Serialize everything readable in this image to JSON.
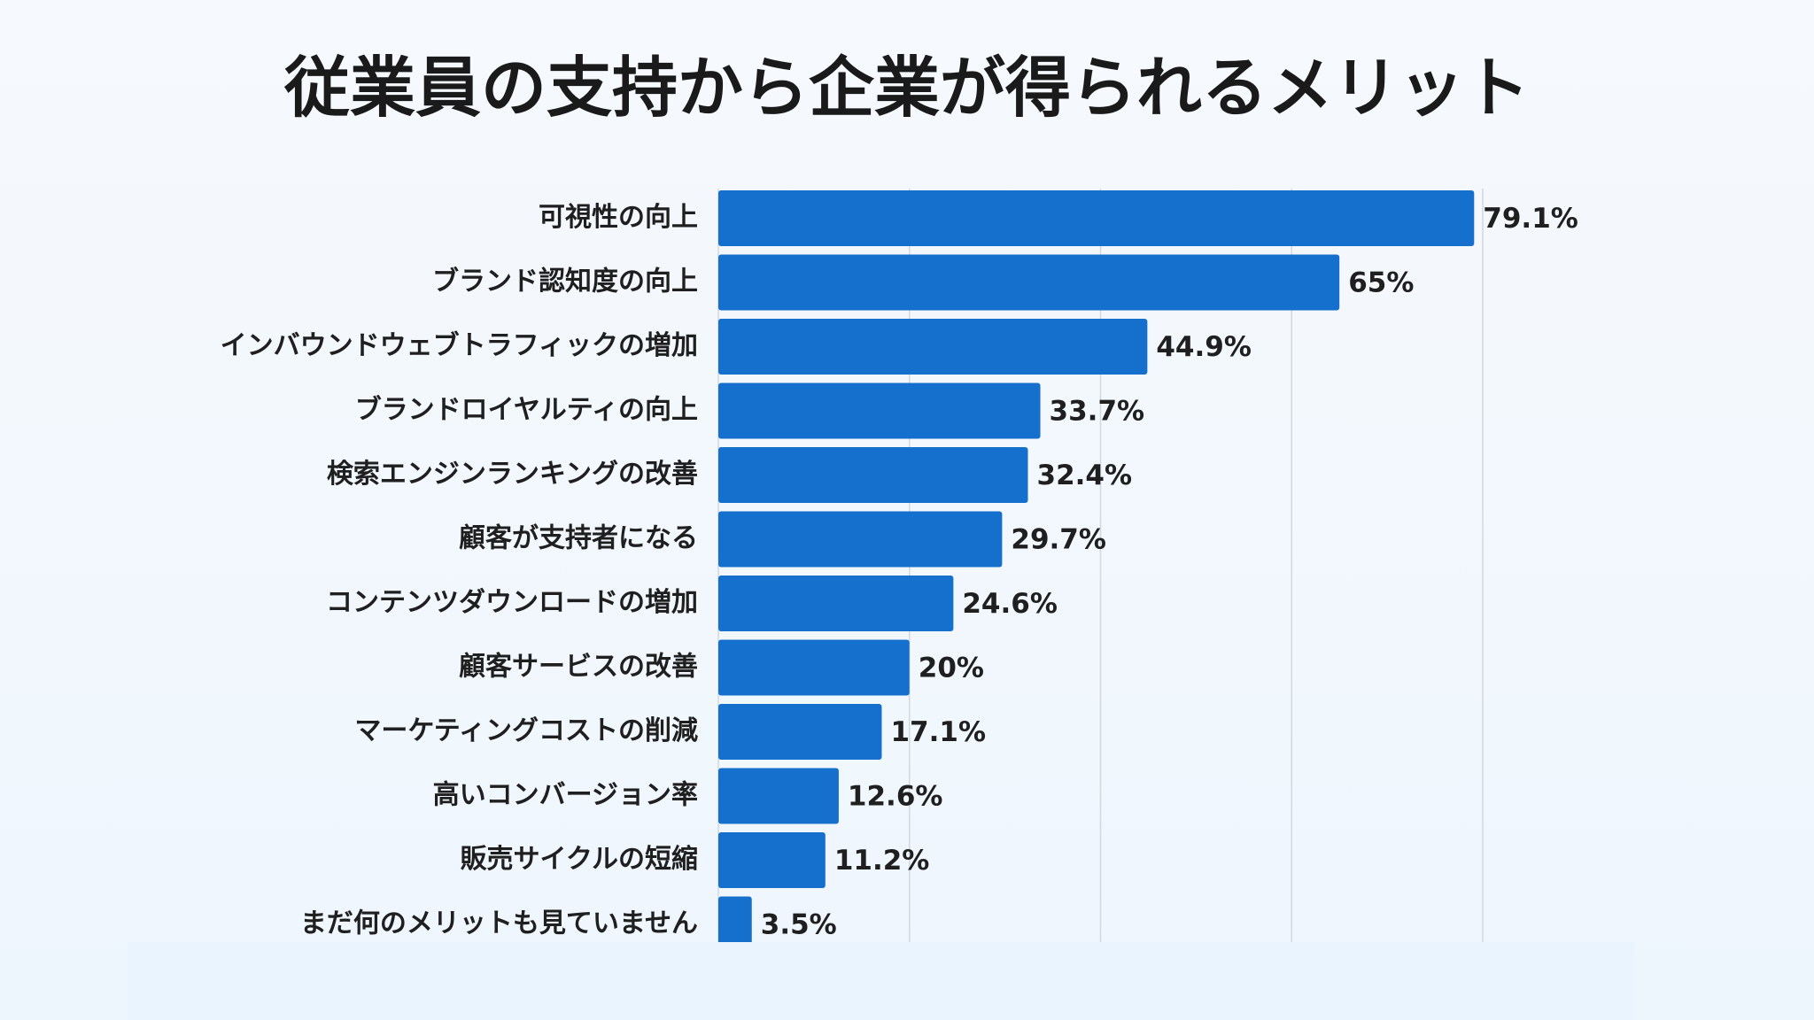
{
  "chart_data": {
    "type": "bar",
    "orientation": "horizontal",
    "title": "従業員の支持から企業が得られるメリット",
    "categories": [
      "可視性の向上",
      "ブランド認知度の向上",
      "インバウンドウェブトラフィックの増加",
      "ブランドロイヤルティの向上",
      "検索エンジンランキングの改善",
      "顧客が支持者になる",
      "コンテンツダウンロードの増加",
      "顧客サービスの改善",
      "マーケティングコストの削減",
      "高いコンバージョン率",
      "販売サイクルの短縮",
      "まだ何のメリットも見ていません"
    ],
    "values": [
      79.1,
      65,
      44.9,
      33.7,
      32.4,
      29.7,
      24.6,
      20,
      17.1,
      12.6,
      11.2,
      3.5
    ],
    "value_labels": [
      "79.1%",
      "65%",
      "44.9%",
      "33.7%",
      "32.4%",
      "29.7%",
      "24.6%",
      "20%",
      "17.1%",
      "12.6%",
      "11.2%",
      "3.5%"
    ],
    "color": "#1470cc",
    "xlim": [
      0,
      80
    ],
    "xticks": [
      20,
      40,
      60,
      80
    ],
    "grid": true
  }
}
